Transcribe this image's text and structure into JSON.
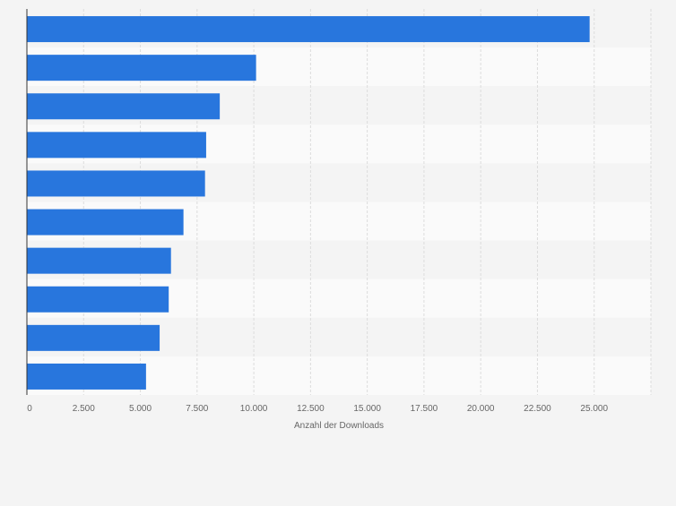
{
  "chart_data": {
    "type": "bar",
    "orientation": "horizontal",
    "title": "",
    "xlabel": "Anzahl der Downloads",
    "ylabel": "",
    "categories": [
      "",
      "",
      "",
      "",
      "",
      "",
      "",
      "",
      "",
      ""
    ],
    "values": [
      24800,
      10100,
      8500,
      7900,
      7850,
      6900,
      6350,
      6250,
      5850,
      5250
    ],
    "xlim": [
      0,
      27500
    ],
    "xticks": [
      0,
      2500,
      5000,
      7500,
      10000,
      12500,
      15000,
      17500,
      20000,
      22500,
      25000
    ],
    "xtick_labels": [
      "0",
      "2.500",
      "5.000",
      "7.500",
      "10.000",
      "12.500",
      "15.000",
      "17.500",
      "20.000",
      "22.500",
      "25.000"
    ],
    "grid": true,
    "legend": "none",
    "colors": {
      "bar": "#2876dd",
      "background": "#f4f4f4",
      "band_light": "#fafafa",
      "band_dark": "#f4f4f4",
      "grid": "#dcdcdc",
      "axis": "#333333",
      "text": "#666666"
    }
  }
}
